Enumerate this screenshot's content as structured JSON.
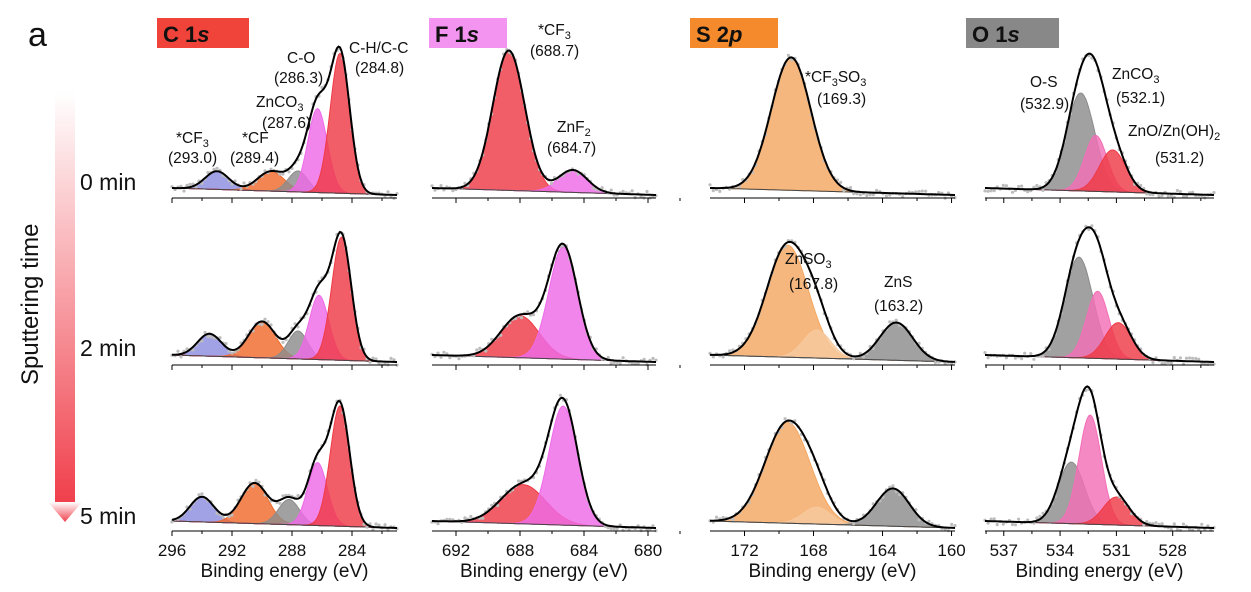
{
  "figure": {
    "panel_letter": "a",
    "side_title": "Sputtering time",
    "time_labels": [
      "0 min",
      "2 min",
      "5 min"
    ],
    "arrow_color_top": "#ffffff",
    "arrow_color_bottom": "#f0404c"
  },
  "chart_data": [
    {
      "type": "line",
      "panel": "C 1s",
      "header": {
        "element": "C 1",
        "orbital": "s",
        "color": "#f0433a"
      },
      "xlabel": "Binding energy (eV)",
      "xlim": [
        296,
        281
      ],
      "xticks": [
        296,
        292,
        288,
        284
      ],
      "tick_labels": [
        "296",
        "292",
        "288",
        "284"
      ],
      "rows": [
        {
          "time": "0 min",
          "peaks": [
            {
              "name": "*CF3",
              "center": 293.0,
              "height": 0.13,
              "width": 0.8,
              "color": "#8c8ce0"
            },
            {
              "name": "*CF",
              "center": 289.4,
              "height": 0.14,
              "width": 0.9,
              "color": "#ef6a2c"
            },
            {
              "name": "ZnCO3",
              "center": 287.6,
              "height": 0.15,
              "width": 0.65,
              "color": "#8c8c8c"
            },
            {
              "name": "C-O",
              "center": 286.3,
              "height": 0.6,
              "width": 0.65,
              "color": "#ee6ae8"
            },
            {
              "name": "C-H/C-C",
              "center": 284.8,
              "height": 1.0,
              "width": 0.65,
              "color": "#ef3a46"
            }
          ]
        },
        {
          "time": "2 min",
          "peaks": [
            {
              "name": "*CF3",
              "center": 293.5,
              "height": 0.16,
              "width": 0.8,
              "color": "#8c8ce0"
            },
            {
              "name": "*CF",
              "center": 290.0,
              "height": 0.26,
              "width": 0.9,
              "color": "#ef6a2c"
            },
            {
              "name": "ZnCO3",
              "center": 287.6,
              "height": 0.2,
              "width": 0.65,
              "color": "#8c8c8c"
            },
            {
              "name": "C-O",
              "center": 286.2,
              "height": 0.46,
              "width": 0.65,
              "color": "#ee6ae8"
            },
            {
              "name": "C-H/C-C",
              "center": 284.7,
              "height": 0.88,
              "width": 0.65,
              "color": "#ef3a46"
            }
          ]
        },
        {
          "time": "5 min",
          "peaks": [
            {
              "name": "*CF3",
              "center": 294.0,
              "height": 0.18,
              "width": 0.8,
              "color": "#8c8ce0"
            },
            {
              "name": "*CF",
              "center": 290.5,
              "height": 0.29,
              "width": 0.9,
              "color": "#ef6a2c"
            },
            {
              "name": "ZnCO3",
              "center": 288.2,
              "height": 0.18,
              "width": 0.7,
              "color": "#8c8c8c"
            },
            {
              "name": "C-O",
              "center": 286.3,
              "height": 0.45,
              "width": 0.65,
              "color": "#ee6ae8"
            },
            {
              "name": "C-H/C-C",
              "center": 284.8,
              "height": 0.86,
              "width": 0.65,
              "color": "#ef3a46"
            }
          ]
        }
      ]
    },
    {
      "type": "line",
      "panel": "F 1s",
      "header": {
        "element": "F 1",
        "orbital": "s",
        "color": "#f395f0"
      },
      "xlabel": "Binding energy (eV)",
      "xlim": [
        693.5,
        679.5
      ],
      "xticks": [
        692,
        688,
        684,
        680
      ],
      "tick_labels": [
        "692",
        "688",
        "684",
        "680"
      ],
      "rows": [
        {
          "time": "0 min",
          "peaks": [
            {
              "name": "*CF3",
              "center": 688.7,
              "height": 1.0,
              "width": 1.0,
              "color": "#ef3a46"
            },
            {
              "name": "ZnF2",
              "center": 684.7,
              "height": 0.16,
              "width": 0.9,
              "color": "#ee6ae8"
            }
          ]
        },
        {
          "time": "2 min",
          "peaks": [
            {
              "name": "*CF3",
              "center": 688.0,
              "height": 0.3,
              "width": 1.2,
              "color": "#ef3a46"
            },
            {
              "name": "ZnF2",
              "center": 685.3,
              "height": 0.8,
              "width": 0.9,
              "color": "#ee6ae8"
            }
          ]
        },
        {
          "time": "5 min",
          "peaks": [
            {
              "name": "*CF3",
              "center": 687.8,
              "height": 0.28,
              "width": 1.4,
              "color": "#ef3a46"
            },
            {
              "name": "ZnF2",
              "center": 685.3,
              "height": 0.85,
              "width": 0.9,
              "color": "#ee6ae8"
            }
          ]
        }
      ]
    },
    {
      "type": "line",
      "panel": "S 2p",
      "header": {
        "element": "S 2",
        "orbital": "p",
        "color": "#f48a2c"
      },
      "xlabel": "Binding energy (eV)",
      "xlim": [
        174,
        159.8
      ],
      "xticks": [
        172,
        168,
        164,
        160
      ],
      "tick_labels": [
        "172",
        "168",
        "164",
        "160"
      ],
      "rows": [
        {
          "time": "0 min",
          "peaks": [
            {
              "name": "*CF3SO3",
              "center": 169.3,
              "height": 0.95,
              "width": 1.15,
              "color": "#f4a761"
            }
          ]
        },
        {
          "time": "2 min",
          "peaks": [
            {
              "name": "ZnSO3",
              "center": 169.5,
              "height": 0.8,
              "width": 1.2,
              "color": "#f4a761"
            },
            {
              "name": "",
              "center": 167.8,
              "height": 0.2,
              "width": 0.8,
              "color": "#f7c99e"
            },
            {
              "name": "ZnS",
              "center": 163.2,
              "height": 0.27,
              "width": 0.95,
              "color": "#8c8c8c"
            }
          ]
        },
        {
          "time": "5 min",
          "peaks": [
            {
              "name": "",
              "center": 169.5,
              "height": 0.72,
              "width": 1.3,
              "color": "#f4a761"
            },
            {
              "name": "",
              "center": 167.8,
              "height": 0.12,
              "width": 0.8,
              "color": "#f7c99e"
            },
            {
              "name": "",
              "center": 163.4,
              "height": 0.27,
              "width": 0.95,
              "color": "#8c8c8c"
            }
          ]
        }
      ]
    },
    {
      "type": "line",
      "panel": "O 1s",
      "header": {
        "element": "O 1",
        "orbital": "s",
        "color": "#888888"
      },
      "xlabel": "Binding energy (eV)",
      "xlim": [
        538,
        525.8
      ],
      "xticks": [
        537,
        534,
        531,
        528
      ],
      "tick_labels": [
        "537",
        "534",
        "531",
        "528"
      ],
      "rows": [
        {
          "time": "0 min",
          "peaks": [
            {
              "name": "O-S",
              "center": 532.9,
              "height": 0.7,
              "width": 0.75,
              "color": "#8c8c8c"
            },
            {
              "name": "ZnCO3",
              "center": 532.1,
              "height": 0.4,
              "width": 0.6,
              "color": "#f36fb7"
            },
            {
              "name": "ZnO/Zn(OH)2",
              "center": 531.2,
              "height": 0.3,
              "width": 0.7,
              "color": "#ef3a46"
            }
          ]
        },
        {
          "time": "2 min",
          "peaks": [
            {
              "name": "O-S",
              "center": 533.0,
              "height": 0.72,
              "width": 0.75,
              "color": "#8c8c8c"
            },
            {
              "name": "ZnCO3",
              "center": 532.0,
              "height": 0.48,
              "width": 0.6,
              "color": "#f36fb7"
            },
            {
              "name": "ZnO/Zn(OH)2",
              "center": 530.9,
              "height": 0.26,
              "width": 0.7,
              "color": "#ef3a46"
            }
          ]
        },
        {
          "time": "5 min",
          "peaks": [
            {
              "name": "O-S",
              "center": 533.4,
              "height": 0.44,
              "width": 0.7,
              "color": "#8c8c8c"
            },
            {
              "name": "ZnCO3",
              "center": 532.4,
              "height": 0.78,
              "width": 0.6,
              "color": "#f36fb7"
            },
            {
              "name": "ZnO/Zn(OH)2",
              "center": 531.0,
              "height": 0.2,
              "width": 0.7,
              "color": "#ef3a46"
            }
          ]
        }
      ]
    }
  ]
}
